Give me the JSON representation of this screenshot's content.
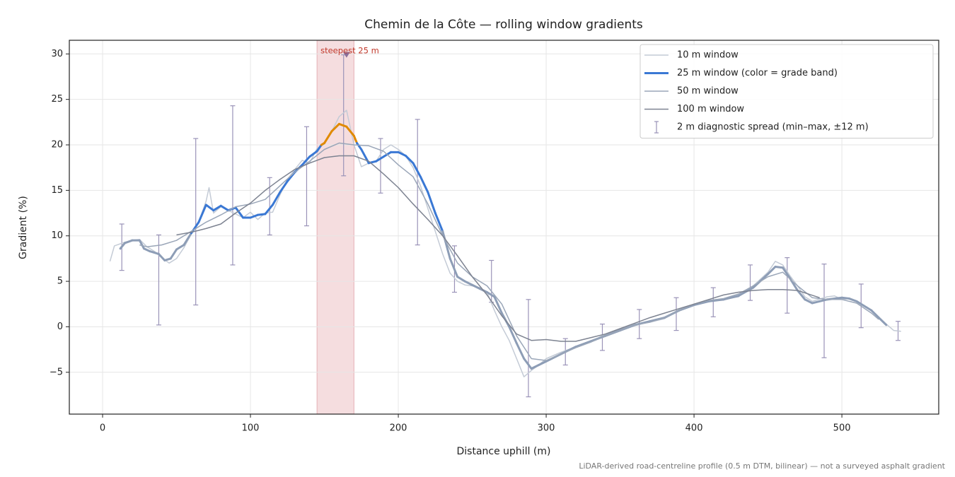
{
  "chart_data": {
    "type": "line",
    "title": "Chemin de la Côte — rolling window gradients",
    "x_label": "Distance uphill (m)",
    "y_label": "Gradient (%)",
    "footnote": "LiDAR-derived road-centreline profile (0.5 m DTM, bilinear) — not a surveyed asphalt gradient",
    "xlim": [
      -22.5,
      565.5
    ],
    "ylim": [
      -9.6,
      31.5
    ],
    "xticks": [
      0,
      100,
      200,
      300,
      400,
      500
    ],
    "yticks": [
      {
        "value": -5,
        "label": "−5"
      },
      0,
      5,
      10,
      15,
      20,
      25,
      30
    ],
    "grid": true,
    "legend": "upper right",
    "highlight": {
      "from": 145,
      "to": 170,
      "color": "#e8b4b8",
      "label": "steepest 25 m",
      "label_color": "#c0392b",
      "peak_x": 165,
      "peak_y": 29.9
    },
    "series": [
      {
        "name": "10 m window",
        "color": "#c4cbd6",
        "width": 1.5,
        "x": [
          5,
          8,
          15,
          20,
          25,
          30,
          35,
          40,
          45,
          50,
          55,
          60,
          65,
          70,
          72,
          75,
          80,
          85,
          90,
          95,
          100,
          105,
          110,
          115,
          120,
          125,
          130,
          135,
          140,
          145,
          150,
          155,
          160,
          165,
          170,
          175,
          180,
          185,
          190,
          195,
          200,
          205,
          210,
          215,
          220,
          225,
          230,
          235,
          240,
          245,
          250,
          255,
          260,
          265,
          270,
          275,
          280,
          285,
          290,
          295,
          300,
          310,
          320,
          330,
          340,
          350,
          360,
          370,
          380,
          390,
          400,
          410,
          420,
          430,
          440,
          450,
          455,
          460,
          465,
          470,
          475,
          480,
          490,
          495,
          500,
          505,
          510,
          520,
          530,
          535,
          540
        ],
        "values": [
          7.2,
          8.9,
          9.3,
          9.5,
          9.6,
          8.8,
          8.3,
          7.6,
          7.0,
          7.5,
          8.7,
          10.2,
          11.5,
          13.8,
          15.3,
          12.5,
          13.2,
          12.8,
          12.4,
          12.0,
          12.6,
          11.8,
          12.5,
          12.6,
          14.5,
          16.2,
          17.3,
          18.3,
          18.0,
          19.6,
          20.1,
          21.5,
          23.1,
          23.8,
          20.0,
          17.6,
          18.0,
          18.2,
          19.5,
          20.0,
          19.5,
          18.8,
          17.5,
          15.5,
          13.0,
          10.5,
          8.0,
          5.9,
          5.0,
          4.6,
          4.5,
          4.3,
          3.8,
          1.8,
          0,
          -1.5,
          -3.5,
          -5.5,
          -4.8,
          -4.2,
          -3.5,
          -2.8,
          -2.2,
          -1.7,
          -0.8,
          -0.3,
          0.2,
          0.5,
          0.9,
          1.8,
          2.5,
          2.8,
          3.0,
          3.3,
          4.5,
          6.0,
          7.2,
          6.8,
          5.6,
          4.5,
          3.3,
          2.8,
          3.3,
          3.4,
          3.0,
          3.1,
          2.8,
          1.8,
          0.3,
          -0.4,
          -0.5
        ]
      },
      {
        "name": "25 m window (color = grade band)",
        "color": "#3a78d4",
        "width": 3,
        "grade_bands": {
          "thresholds": [
            10,
            20
          ],
          "colors": [
            "#8d9db6",
            "#3a78d4",
            "#e08a00"
          ]
        },
        "x": [
          12,
          15,
          20,
          25,
          28,
          32,
          38,
          42,
          46,
          50,
          55,
          60,
          65,
          70,
          75,
          80,
          85,
          90,
          95,
          100,
          105,
          110,
          115,
          120,
          125,
          130,
          135,
          140,
          145,
          148,
          150,
          155,
          160,
          165,
          170,
          172,
          175,
          180,
          185,
          190,
          195,
          200,
          205,
          210,
          215,
          220,
          225,
          230,
          235,
          240,
          245,
          250,
          255,
          260,
          265,
          270,
          275,
          280,
          285,
          290,
          295,
          300,
          310,
          320,
          330,
          340,
          350,
          360,
          370,
          380,
          390,
          400,
          410,
          420,
          430,
          440,
          450,
          455,
          460,
          465,
          470,
          475,
          480,
          490,
          500,
          505,
          510,
          520,
          530
        ],
        "values": [
          8.6,
          9.2,
          9.5,
          9.5,
          8.6,
          8.3,
          8.0,
          7.3,
          7.5,
          8.5,
          9.0,
          10.3,
          11.5,
          13.4,
          12.8,
          13.3,
          12.8,
          13.1,
          12.0,
          12.0,
          12.3,
          12.4,
          13.4,
          14.8,
          16.0,
          17.0,
          17.8,
          18.7,
          19.3,
          20.0,
          20.2,
          21.5,
          22.3,
          22.0,
          21.0,
          20.2,
          19.5,
          18.0,
          18.2,
          18.7,
          19.2,
          19.2,
          18.8,
          18.0,
          16.5,
          14.8,
          12.5,
          10.5,
          7.5,
          5.5,
          5.0,
          4.6,
          4.2,
          3.8,
          3.3,
          1.5,
          0,
          -1.8,
          -3.5,
          -4.6,
          -4.2,
          -3.8,
          -3.0,
          -2.2,
          -1.6,
          -1.0,
          -0.4,
          0.2,
          0.6,
          1.0,
          1.8,
          2.4,
          2.8,
          3.0,
          3.4,
          4.3,
          5.8,
          6.6,
          6.5,
          5.3,
          4.0,
          3.0,
          2.6,
          3.0,
          3.2,
          3.1,
          2.8,
          1.8,
          0.2
        ]
      },
      {
        "name": "50 m window",
        "color": "#9aa6b8",
        "width": 1.5,
        "x": [
          25,
          30,
          40,
          50,
          60,
          70,
          80,
          90,
          100,
          110,
          120,
          130,
          140,
          150,
          160,
          170,
          180,
          190,
          200,
          210,
          220,
          230,
          240,
          250,
          260,
          270,
          280,
          290,
          300,
          310,
          320,
          330,
          340,
          350,
          360,
          370,
          380,
          390,
          400,
          410,
          420,
          430,
          440,
          450,
          460,
          470,
          480,
          490,
          500,
          510,
          520,
          525
        ],
        "values": [
          9.0,
          8.8,
          9.0,
          9.5,
          10.5,
          11.5,
          12.3,
          13.2,
          13.5,
          14.0,
          15.5,
          17.0,
          18.2,
          19.5,
          20.2,
          20.0,
          19.9,
          19.3,
          17.8,
          16.5,
          13.5,
          10.0,
          7.0,
          5.5,
          4.5,
          2.5,
          -1.0,
          -3.5,
          -3.7,
          -3.0,
          -2.3,
          -1.7,
          -1.0,
          -0.4,
          0.2,
          0.5,
          1.0,
          1.8,
          2.5,
          2.9,
          3.1,
          3.6,
          4.5,
          5.5,
          6.0,
          4.5,
          3.2,
          3.0,
          3.0,
          2.6,
          1.5,
          0.8
        ]
      },
      {
        "name": "100 m window",
        "color": "#7d8391",
        "width": 1.5,
        "x": [
          50,
          60,
          70,
          80,
          90,
          100,
          110,
          120,
          130,
          140,
          150,
          160,
          170,
          180,
          190,
          200,
          210,
          220,
          230,
          240,
          250,
          260,
          270,
          280,
          290,
          300,
          310,
          320,
          330,
          340,
          350,
          360,
          370,
          380,
          390,
          400,
          410,
          420,
          430,
          440,
          450,
          460,
          470,
          485
        ],
        "values": [
          10.1,
          10.4,
          10.8,
          11.3,
          12.5,
          13.6,
          15.0,
          16.2,
          17.3,
          18.0,
          18.6,
          18.8,
          18.8,
          18.2,
          16.8,
          15.3,
          13.5,
          11.8,
          10.0,
          7.8,
          5.5,
          3.5,
          1.2,
          -0.8,
          -1.5,
          -1.4,
          -1.6,
          -1.6,
          -1.2,
          -0.8,
          -0.2,
          0.4,
          1.0,
          1.5,
          2.0,
          2.5,
          3.0,
          3.5,
          3.8,
          4.0,
          4.1,
          4.1,
          4.0,
          3.2
        ]
      }
    ],
    "spread": {
      "name": "2 m diagnostic spread (min–max, ±12 m)",
      "color": "#9a93b8",
      "x": [
        13,
        38,
        63,
        88,
        113,
        138,
        163,
        188,
        213,
        238,
        263,
        288,
        313,
        338,
        363,
        388,
        413,
        438,
        463,
        488,
        513,
        538
      ],
      "low": [
        6.2,
        0.2,
        2.4,
        6.8,
        10.1,
        11.1,
        16.6,
        14.7,
        9.0,
        3.8,
        2.7,
        -7.7,
        -4.2,
        -2.6,
        -1.3,
        -0.4,
        1.1,
        2.9,
        1.5,
        -3.4,
        -0.1,
        -1.5
      ],
      "high": [
        11.3,
        10.1,
        20.7,
        24.3,
        16.4,
        22.0,
        29.9,
        20.7,
        22.8,
        8.9,
        7.3,
        3.0,
        -1.3,
        0.3,
        1.9,
        3.2,
        4.3,
        6.8,
        7.6,
        6.9,
        4.7,
        0.6
      ]
    }
  }
}
